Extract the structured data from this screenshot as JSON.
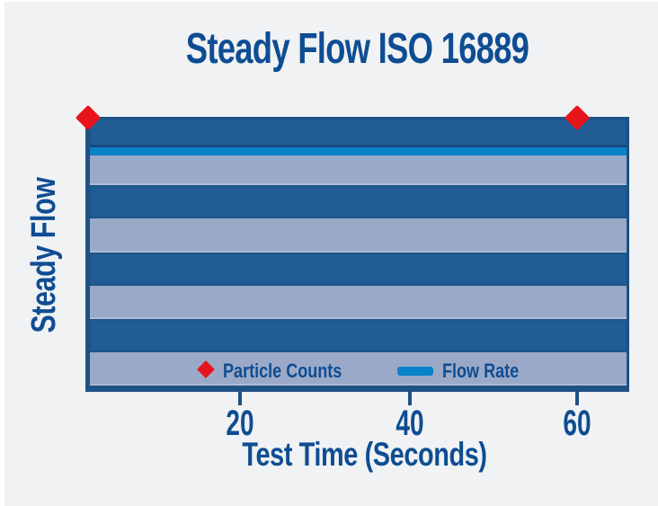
{
  "title": "Steady Flow ISO 16889",
  "axes": {
    "x_label": "Test Time (Seconds)",
    "y_label": "Steady Flow",
    "x_ticks": [
      "20",
      "40",
      "60"
    ]
  },
  "legend": {
    "particle_counts_label": "Particle Counts",
    "flow_rate_label": "Flow Rate",
    "particle_marker": "red-diamond",
    "flow_marker": "blue-line"
  },
  "colors": {
    "background": "#f0f2f4",
    "dark_band": "#225c95",
    "light_band": "#9aa9c7",
    "flow_rate_blue": "#0a82c8",
    "particle_red": "#e8141c",
    "frame_blue": "#1d5285",
    "text_blue": "#0f4d92"
  },
  "chart_data": {
    "type": "line",
    "title": "Steady Flow ISO 16889",
    "xlabel": "Test Time (Seconds)",
    "ylabel": "Steady Flow",
    "x_ticks": [
      20,
      40,
      60
    ],
    "xlim": [
      0,
      66
    ],
    "y_axis_numeric": false,
    "grid": false,
    "legend_position": "bottom-inside",
    "plot_background": "alternating horizontal stripes of dark blue and light blue-gray",
    "series": [
      {
        "name": "Particle Counts",
        "type": "scatter",
        "marker": "diamond",
        "color": "#e8141c",
        "x": [
          0,
          60
        ],
        "y_relative": [
          1.0,
          1.0
        ],
        "note": "two diamond markers at the top edge of the plot - counts remain steady over test time"
      },
      {
        "name": "Flow Rate",
        "type": "line",
        "color": "#0a82c8",
        "x": [
          0,
          66
        ],
        "y_relative": [
          0.88,
          0.88
        ],
        "note": "constant horizontal line near top of plot - flow rate is steady for entire test"
      }
    ]
  }
}
